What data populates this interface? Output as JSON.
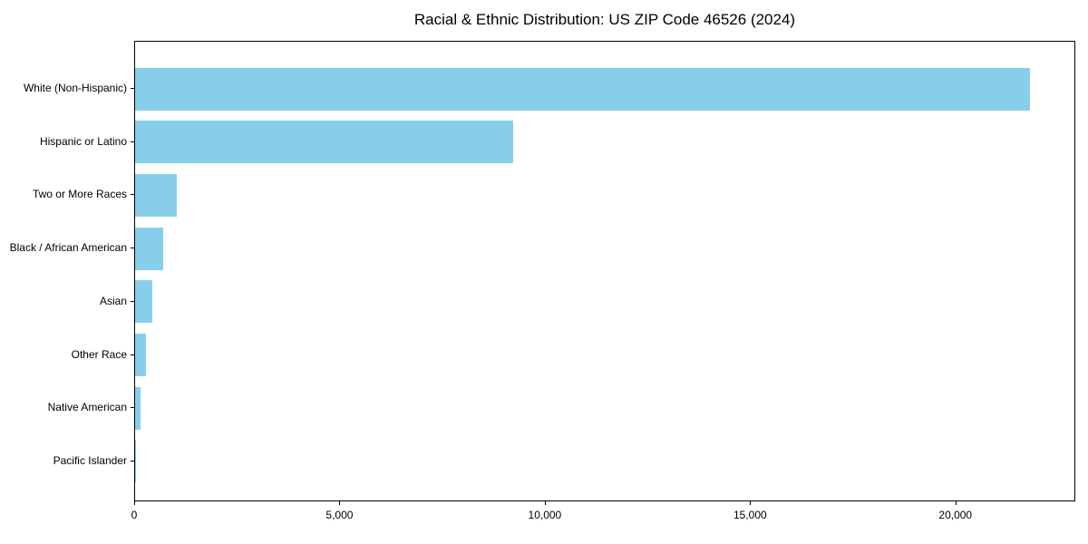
{
  "title": "Racial & Ethnic Distribution: US ZIP Code 46526 (2024)",
  "colors": {
    "bar": "#87CEEB",
    "axis": "#000000",
    "text": "#000000",
    "background": "#ffffff"
  },
  "chart_data": {
    "type": "bar",
    "orientation": "horizontal",
    "title": "Racial & Ethnic Distribution: US ZIP Code 46526 (2024)",
    "categories": [
      "White (Non-Hispanic)",
      "Hispanic or Latino",
      "Two or More Races",
      "Black / African American",
      "Asian",
      "Other Race",
      "Native American",
      "Pacific Islander"
    ],
    "values": [
      21830,
      9230,
      1020,
      680,
      430,
      270,
      140,
      10
    ],
    "xlabel": "",
    "ylabel": "",
    "xlim": [
      0,
      22920
    ],
    "x_ticks": [
      0,
      5000,
      10000,
      15000,
      20000
    ],
    "x_tick_labels": [
      "0",
      "5,000",
      "10,000",
      "15,000",
      "20,000"
    ],
    "grid": false,
    "legend": null,
    "bar_color": "#87CEEB"
  }
}
